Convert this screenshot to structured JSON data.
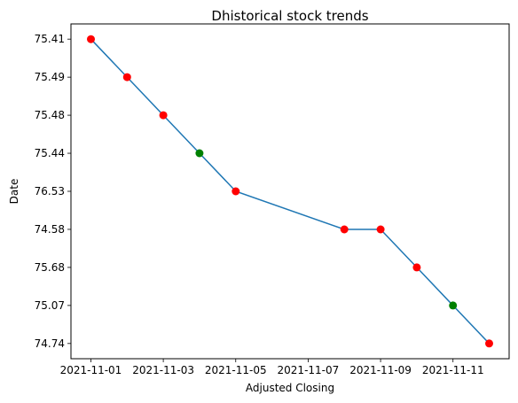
{
  "chart_data": {
    "type": "line",
    "title": "Dhistorical stock trends",
    "xlabel": "Adjusted Closing",
    "ylabel": "Date",
    "x_ticks": [
      "2021-11-01",
      "2021-11-03",
      "2021-11-05",
      "2021-11-07",
      "2021-11-09",
      "2021-11-11"
    ],
    "y_categories": [
      "75.41",
      "75.49",
      "75.48",
      "75.44",
      "76.53",
      "74.58",
      "75.68",
      "75.07",
      "74.74"
    ],
    "series": [
      {
        "x": [
          "2021-11-01",
          "2021-11-02",
          "2021-11-03",
          "2021-11-04",
          "2021-11-05",
          "2021-11-08",
          "2021-11-09",
          "2021-11-10",
          "2021-11-11",
          "2021-11-12"
        ],
        "y": [
          "75.41",
          "75.49",
          "75.48",
          "75.44",
          "76.53",
          "74.58",
          "74.58",
          "75.68",
          "75.07",
          "74.74"
        ],
        "marker_colors": [
          "red",
          "red",
          "red",
          "green",
          "red",
          "red",
          "red",
          "red",
          "green",
          "red"
        ]
      }
    ],
    "colors": {
      "line": "#1f77b4",
      "red": "#ff0000",
      "green": "#008000"
    },
    "grid": false,
    "legend": "none"
  }
}
